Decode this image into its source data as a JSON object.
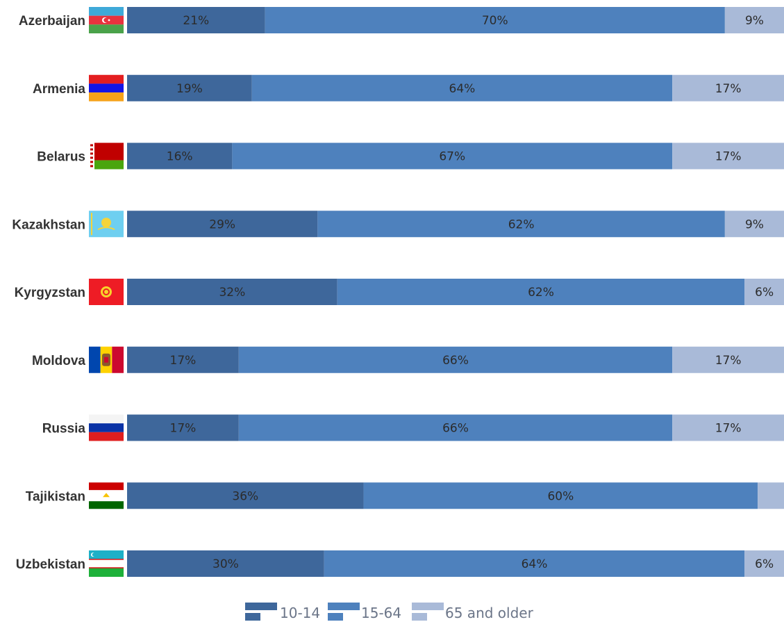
{
  "colors": {
    "age_10_14": "#3e679b",
    "age_15_64": "#4e81bd",
    "age_65_older": "#a9bad8",
    "label_text": "#333333",
    "legend_text": "#6b7588"
  },
  "chart_data": {
    "type": "bar",
    "orientation": "horizontal",
    "stacked": true,
    "categories": [
      "Azerbaijan",
      "Armenia",
      "Belarus",
      "Kazakhstan",
      "Kyrgyzstan",
      "Moldova",
      "Russia",
      "Tajikistan",
      "Uzbekistan"
    ],
    "series": [
      {
        "name": "10-14",
        "values": [
          21,
          19,
          16,
          29,
          32,
          17,
          17,
          36,
          30
        ],
        "labels": [
          "21%",
          "19%",
          "16%",
          "29%",
          "32%",
          "17%",
          "17%",
          "36%",
          "30%"
        ]
      },
      {
        "name": "15-64",
        "values": [
          70,
          64,
          67,
          62,
          62,
          66,
          66,
          60,
          64
        ],
        "labels": [
          "70%",
          "64%",
          "67%",
          "62%",
          "62%",
          "66%",
          "66%",
          "60%",
          "64%"
        ]
      },
      {
        "name": "65 and older",
        "values": [
          9,
          17,
          17,
          9,
          6,
          17,
          17,
          4,
          6
        ],
        "labels": [
          "9%",
          "17%",
          "17%",
          "9%",
          "6%",
          "17%",
          "17%",
          "",
          "6%"
        ]
      }
    ],
    "xlim": [
      0,
      100
    ],
    "grid": false,
    "legend_position": "bottom",
    "flags": [
      "azerbaijan-flag-icon",
      "armenia-flag-icon",
      "belarus-flag-icon",
      "kazakhstan-flag-icon",
      "kyrgyzstan-flag-icon",
      "moldova-flag-icon",
      "russia-flag-icon",
      "tajikistan-flag-icon",
      "uzbekistan-flag-icon"
    ]
  }
}
